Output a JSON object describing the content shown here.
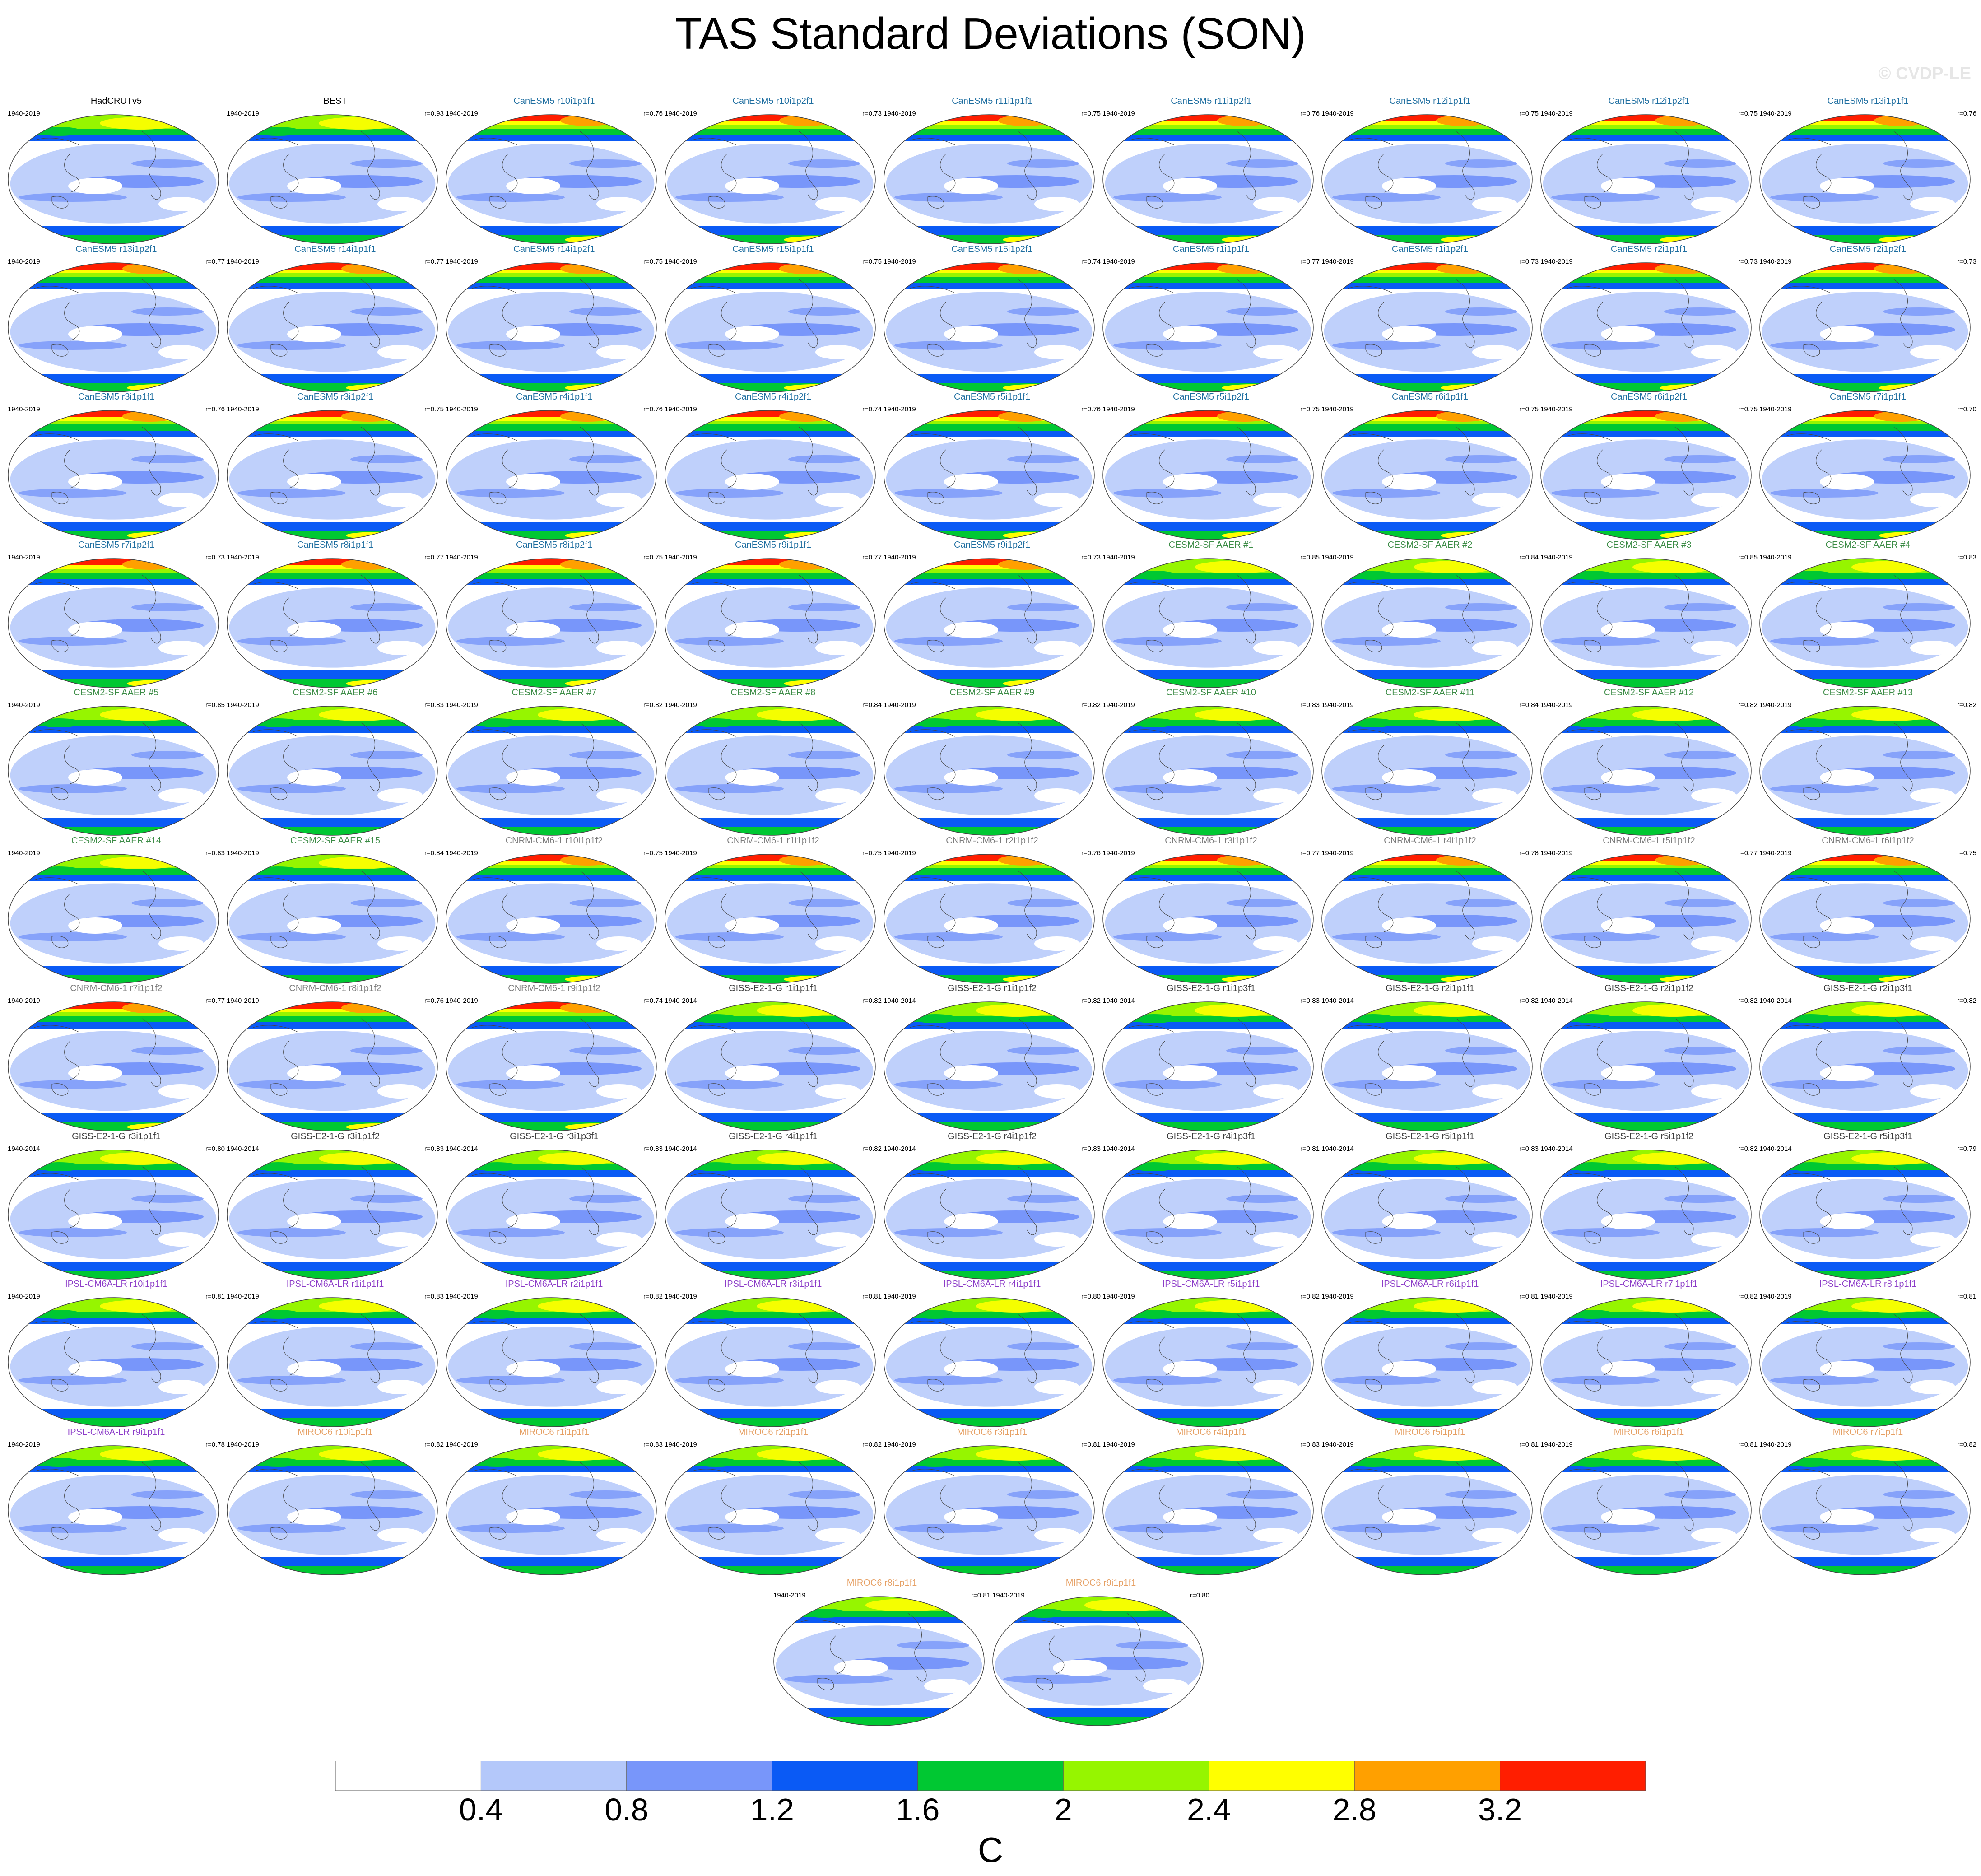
{
  "title": "TAS Standard Deviations (SON)",
  "watermark": "© CVDP-LE",
  "colors": {
    "levels": [
      "#ffffff",
      "#b4c8fa",
      "#7896fa",
      "#0a5af5",
      "#00c832",
      "#96f500",
      "#ffff00",
      "#ffa000",
      "#ff1e00"
    ],
    "model_titles": {
      "obs": "#000000",
      "CanESM5": "#1e6ea0",
      "CESM2-SF AAER": "#3c8c46",
      "CNRM-CM6-1": "#7d7d7d",
      "GISS-E2-1-G": "#3c3c3c",
      "IPSL-CM6A-LR": "#8c3cc8",
      "MIROC6": "#e6a064"
    }
  },
  "chart_data": {
    "type": "heatmap",
    "title": "TAS Standard Deviations (SON)",
    "colorbar": {
      "ticks": [
        "0.4",
        "0.8",
        "1.2",
        "1.6",
        "2",
        "2.4",
        "2.8",
        "3.2"
      ],
      "units": "C"
    },
    "panels": [
      {
        "name": "HadCRUTv5",
        "group": "obs",
        "period": "1940-2019",
        "corr": ""
      },
      {
        "name": "BEST",
        "group": "obs",
        "period": "1940-2019",
        "corr": "r=0.93"
      },
      {
        "name": "CanESM5 r10i1p1f1",
        "group": "CanESM5",
        "period": "1940-2019",
        "corr": "r=0.76"
      },
      {
        "name": "CanESM5 r10i1p2f1",
        "group": "CanESM5",
        "period": "1940-2019",
        "corr": "r=0.73"
      },
      {
        "name": "CanESM5 r11i1p1f1",
        "group": "CanESM5",
        "period": "1940-2019",
        "corr": "r=0.75"
      },
      {
        "name": "CanESM5 r11i1p2f1",
        "group": "CanESM5",
        "period": "1940-2019",
        "corr": "r=0.76"
      },
      {
        "name": "CanESM5 r12i1p1f1",
        "group": "CanESM5",
        "period": "1940-2019",
        "corr": "r=0.75"
      },
      {
        "name": "CanESM5 r12i1p2f1",
        "group": "CanESM5",
        "period": "1940-2019",
        "corr": "r=0.75"
      },
      {
        "name": "CanESM5 r13i1p1f1",
        "group": "CanESM5",
        "period": "1940-2019",
        "corr": "r=0.76"
      },
      {
        "name": "CanESM5 r13i1p2f1",
        "group": "CanESM5",
        "period": "1940-2019",
        "corr": "r=0.77"
      },
      {
        "name": "CanESM5 r14i1p1f1",
        "group": "CanESM5",
        "period": "1940-2019",
        "corr": "r=0.77"
      },
      {
        "name": "CanESM5 r14i1p2f1",
        "group": "CanESM5",
        "period": "1940-2019",
        "corr": "r=0.75"
      },
      {
        "name": "CanESM5 r15i1p1f1",
        "group": "CanESM5",
        "period": "1940-2019",
        "corr": "r=0.75"
      },
      {
        "name": "CanESM5 r15i1p2f1",
        "group": "CanESM5",
        "period": "1940-2019",
        "corr": "r=0.74"
      },
      {
        "name": "CanESM5 r1i1p1f1",
        "group": "CanESM5",
        "period": "1940-2019",
        "corr": "r=0.77"
      },
      {
        "name": "CanESM5 r1i1p2f1",
        "group": "CanESM5",
        "period": "1940-2019",
        "corr": "r=0.73"
      },
      {
        "name": "CanESM5 r2i1p1f1",
        "group": "CanESM5",
        "period": "1940-2019",
        "corr": "r=0.73"
      },
      {
        "name": "CanESM5 r2i1p2f1",
        "group": "CanESM5",
        "period": "1940-2019",
        "corr": "r=0.73"
      },
      {
        "name": "CanESM5 r3i1p1f1",
        "group": "CanESM5",
        "period": "1940-2019",
        "corr": "r=0.76"
      },
      {
        "name": "CanESM5 r3i1p2f1",
        "group": "CanESM5",
        "period": "1940-2019",
        "corr": "r=0.75"
      },
      {
        "name": "CanESM5 r4i1p1f1",
        "group": "CanESM5",
        "period": "1940-2019",
        "corr": "r=0.76"
      },
      {
        "name": "CanESM5 r4i1p2f1",
        "group": "CanESM5",
        "period": "1940-2019",
        "corr": "r=0.74"
      },
      {
        "name": "CanESM5 r5i1p1f1",
        "group": "CanESM5",
        "period": "1940-2019",
        "corr": "r=0.76"
      },
      {
        "name": "CanESM5 r5i1p2f1",
        "group": "CanESM5",
        "period": "1940-2019",
        "corr": "r=0.75"
      },
      {
        "name": "CanESM5 r6i1p1f1",
        "group": "CanESM5",
        "period": "1940-2019",
        "corr": "r=0.75"
      },
      {
        "name": "CanESM5 r6i1p2f1",
        "group": "CanESM5",
        "period": "1940-2019",
        "corr": "r=0.75"
      },
      {
        "name": "CanESM5 r7i1p1f1",
        "group": "CanESM5",
        "period": "1940-2019",
        "corr": "r=0.70"
      },
      {
        "name": "CanESM5 r7i1p2f1",
        "group": "CanESM5",
        "period": "1940-2019",
        "corr": "r=0.73"
      },
      {
        "name": "CanESM5 r8i1p1f1",
        "group": "CanESM5",
        "period": "1940-2019",
        "corr": "r=0.77"
      },
      {
        "name": "CanESM5 r8i1p2f1",
        "group": "CanESM5",
        "period": "1940-2019",
        "corr": "r=0.75"
      },
      {
        "name": "CanESM5 r9i1p1f1",
        "group": "CanESM5",
        "period": "1940-2019",
        "corr": "r=0.77"
      },
      {
        "name": "CanESM5 r9i1p2f1",
        "group": "CanESM5",
        "period": "1940-2019",
        "corr": "r=0.73"
      },
      {
        "name": "CESM2-SF AAER #1",
        "group": "CESM2-SF AAER",
        "period": "1940-2019",
        "corr": "r=0.85"
      },
      {
        "name": "CESM2-SF AAER #2",
        "group": "CESM2-SF AAER",
        "period": "1940-2019",
        "corr": "r=0.84"
      },
      {
        "name": "CESM2-SF AAER #3",
        "group": "CESM2-SF AAER",
        "period": "1940-2019",
        "corr": "r=0.85"
      },
      {
        "name": "CESM2-SF AAER #4",
        "group": "CESM2-SF AAER",
        "period": "1940-2019",
        "corr": "r=0.83"
      },
      {
        "name": "CESM2-SF AAER #5",
        "group": "CESM2-SF AAER",
        "period": "1940-2019",
        "corr": "r=0.85"
      },
      {
        "name": "CESM2-SF AAER #6",
        "group": "CESM2-SF AAER",
        "period": "1940-2019",
        "corr": "r=0.83"
      },
      {
        "name": "CESM2-SF AAER #7",
        "group": "CESM2-SF AAER",
        "period": "1940-2019",
        "corr": "r=0.82"
      },
      {
        "name": "CESM2-SF AAER #8",
        "group": "CESM2-SF AAER",
        "period": "1940-2019",
        "corr": "r=0.84"
      },
      {
        "name": "CESM2-SF AAER #9",
        "group": "CESM2-SF AAER",
        "period": "1940-2019",
        "corr": "r=0.82"
      },
      {
        "name": "CESM2-SF AAER #10",
        "group": "CESM2-SF AAER",
        "period": "1940-2019",
        "corr": "r=0.83"
      },
      {
        "name": "CESM2-SF AAER #11",
        "group": "CESM2-SF AAER",
        "period": "1940-2019",
        "corr": "r=0.84"
      },
      {
        "name": "CESM2-SF AAER #12",
        "group": "CESM2-SF AAER",
        "period": "1940-2019",
        "corr": "r=0.82"
      },
      {
        "name": "CESM2-SF AAER #13",
        "group": "CESM2-SF AAER",
        "period": "1940-2019",
        "corr": "r=0.82"
      },
      {
        "name": "CESM2-SF AAER #14",
        "group": "CESM2-SF AAER",
        "period": "1940-2019",
        "corr": "r=0.83"
      },
      {
        "name": "CESM2-SF AAER #15",
        "group": "CESM2-SF AAER",
        "period": "1940-2019",
        "corr": "r=0.84"
      },
      {
        "name": "CNRM-CM6-1 r10i1p1f2",
        "group": "CNRM-CM6-1",
        "period": "1940-2019",
        "corr": "r=0.75"
      },
      {
        "name": "CNRM-CM6-1 r1i1p1f2",
        "group": "CNRM-CM6-1",
        "period": "1940-2019",
        "corr": "r=0.75"
      },
      {
        "name": "CNRM-CM6-1 r2i1p1f2",
        "group": "CNRM-CM6-1",
        "period": "1940-2019",
        "corr": "r=0.76"
      },
      {
        "name": "CNRM-CM6-1 r3i1p1f2",
        "group": "CNRM-CM6-1",
        "period": "1940-2019",
        "corr": "r=0.77"
      },
      {
        "name": "CNRM-CM6-1 r4i1p1f2",
        "group": "CNRM-CM6-1",
        "period": "1940-2019",
        "corr": "r=0.78"
      },
      {
        "name": "CNRM-CM6-1 r5i1p1f2",
        "group": "CNRM-CM6-1",
        "period": "1940-2019",
        "corr": "r=0.77"
      },
      {
        "name": "CNRM-CM6-1 r6i1p1f2",
        "group": "CNRM-CM6-1",
        "period": "1940-2019",
        "corr": "r=0.75"
      },
      {
        "name": "CNRM-CM6-1 r7i1p1f2",
        "group": "CNRM-CM6-1",
        "period": "1940-2019",
        "corr": "r=0.77"
      },
      {
        "name": "CNRM-CM6-1 r8i1p1f2",
        "group": "CNRM-CM6-1",
        "period": "1940-2019",
        "corr": "r=0.76"
      },
      {
        "name": "CNRM-CM6-1 r9i1p1f2",
        "group": "CNRM-CM6-1",
        "period": "1940-2019",
        "corr": "r=0.74"
      },
      {
        "name": "GISS-E2-1-G r1i1p1f1",
        "group": "GISS-E2-1-G",
        "period": "1940-2014",
        "corr": "r=0.82"
      },
      {
        "name": "GISS-E2-1-G r1i1p1f2",
        "group": "GISS-E2-1-G",
        "period": "1940-2014",
        "corr": "r=0.82"
      },
      {
        "name": "GISS-E2-1-G r1i1p3f1",
        "group": "GISS-E2-1-G",
        "period": "1940-2014",
        "corr": "r=0.83"
      },
      {
        "name": "GISS-E2-1-G r2i1p1f1",
        "group": "GISS-E2-1-G",
        "period": "1940-2014",
        "corr": "r=0.82"
      },
      {
        "name": "GISS-E2-1-G r2i1p1f2",
        "group": "GISS-E2-1-G",
        "period": "1940-2014",
        "corr": "r=0.82"
      },
      {
        "name": "GISS-E2-1-G r2i1p3f1",
        "group": "GISS-E2-1-G",
        "period": "1940-2014",
        "corr": "r=0.82"
      },
      {
        "name": "GISS-E2-1-G r3i1p1f1",
        "group": "GISS-E2-1-G",
        "period": "1940-2014",
        "corr": "r=0.80"
      },
      {
        "name": "GISS-E2-1-G r3i1p1f2",
        "group": "GISS-E2-1-G",
        "period": "1940-2014",
        "corr": "r=0.83"
      },
      {
        "name": "GISS-E2-1-G r3i1p3f1",
        "group": "GISS-E2-1-G",
        "period": "1940-2014",
        "corr": "r=0.83"
      },
      {
        "name": "GISS-E2-1-G r4i1p1f1",
        "group": "GISS-E2-1-G",
        "period": "1940-2014",
        "corr": "r=0.82"
      },
      {
        "name": "GISS-E2-1-G r4i1p1f2",
        "group": "GISS-E2-1-G",
        "period": "1940-2014",
        "corr": "r=0.83"
      },
      {
        "name": "GISS-E2-1-G r4i1p3f1",
        "group": "GISS-E2-1-G",
        "period": "1940-2014",
        "corr": "r=0.81"
      },
      {
        "name": "GISS-E2-1-G r5i1p1f1",
        "group": "GISS-E2-1-G",
        "period": "1940-2014",
        "corr": "r=0.83"
      },
      {
        "name": "GISS-E2-1-G r5i1p1f2",
        "group": "GISS-E2-1-G",
        "period": "1940-2014",
        "corr": "r=0.82"
      },
      {
        "name": "GISS-E2-1-G r5i1p3f1",
        "group": "GISS-E2-1-G",
        "period": "1940-2014",
        "corr": "r=0.79"
      },
      {
        "name": "IPSL-CM6A-LR r10i1p1f1",
        "group": "IPSL-CM6A-LR",
        "period": "1940-2019",
        "corr": "r=0.81"
      },
      {
        "name": "IPSL-CM6A-LR r1i1p1f1",
        "group": "IPSL-CM6A-LR",
        "period": "1940-2019",
        "corr": "r=0.83"
      },
      {
        "name": "IPSL-CM6A-LR r2i1p1f1",
        "group": "IPSL-CM6A-LR",
        "period": "1940-2019",
        "corr": "r=0.82"
      },
      {
        "name": "IPSL-CM6A-LR r3i1p1f1",
        "group": "IPSL-CM6A-LR",
        "period": "1940-2019",
        "corr": "r=0.81"
      },
      {
        "name": "IPSL-CM6A-LR r4i1p1f1",
        "group": "IPSL-CM6A-LR",
        "period": "1940-2019",
        "corr": "r=0.80"
      },
      {
        "name": "IPSL-CM6A-LR r5i1p1f1",
        "group": "IPSL-CM6A-LR",
        "period": "1940-2019",
        "corr": "r=0.82"
      },
      {
        "name": "IPSL-CM6A-LR r6i1p1f1",
        "group": "IPSL-CM6A-LR",
        "period": "1940-2019",
        "corr": "r=0.81"
      },
      {
        "name": "IPSL-CM6A-LR r7i1p1f1",
        "group": "IPSL-CM6A-LR",
        "period": "1940-2019",
        "corr": "r=0.82"
      },
      {
        "name": "IPSL-CM6A-LR r8i1p1f1",
        "group": "IPSL-CM6A-LR",
        "period": "1940-2019",
        "corr": "r=0.81"
      },
      {
        "name": "IPSL-CM6A-LR r9i1p1f1",
        "group": "IPSL-CM6A-LR",
        "period": "1940-2019",
        "corr": "r=0.78"
      },
      {
        "name": "MIROC6 r10i1p1f1",
        "group": "MIROC6",
        "period": "1940-2019",
        "corr": "r=0.82"
      },
      {
        "name": "MIROC6 r1i1p1f1",
        "group": "MIROC6",
        "period": "1940-2019",
        "corr": "r=0.83"
      },
      {
        "name": "MIROC6 r2i1p1f1",
        "group": "MIROC6",
        "period": "1940-2019",
        "corr": "r=0.82"
      },
      {
        "name": "MIROC6 r3i1p1f1",
        "group": "MIROC6",
        "period": "1940-2019",
        "corr": "r=0.81"
      },
      {
        "name": "MIROC6 r4i1p1f1",
        "group": "MIROC6",
        "period": "1940-2019",
        "corr": "r=0.83"
      },
      {
        "name": "MIROC6 r5i1p1f1",
        "group": "MIROC6",
        "period": "1940-2019",
        "corr": "r=0.81"
      },
      {
        "name": "MIROC6 r6i1p1f1",
        "group": "MIROC6",
        "period": "1940-2019",
        "corr": "r=0.81"
      },
      {
        "name": "MIROC6 r7i1p1f1",
        "group": "MIROC6",
        "period": "1940-2019",
        "corr": "r=0.82"
      },
      {
        "name": "MIROC6 r8i1p1f1",
        "group": "MIROC6",
        "period": "1940-2019",
        "corr": "r=0.81"
      },
      {
        "name": "MIROC6 r9i1p1f1",
        "group": "MIROC6",
        "period": "1940-2019",
        "corr": "r=0.80"
      }
    ]
  }
}
